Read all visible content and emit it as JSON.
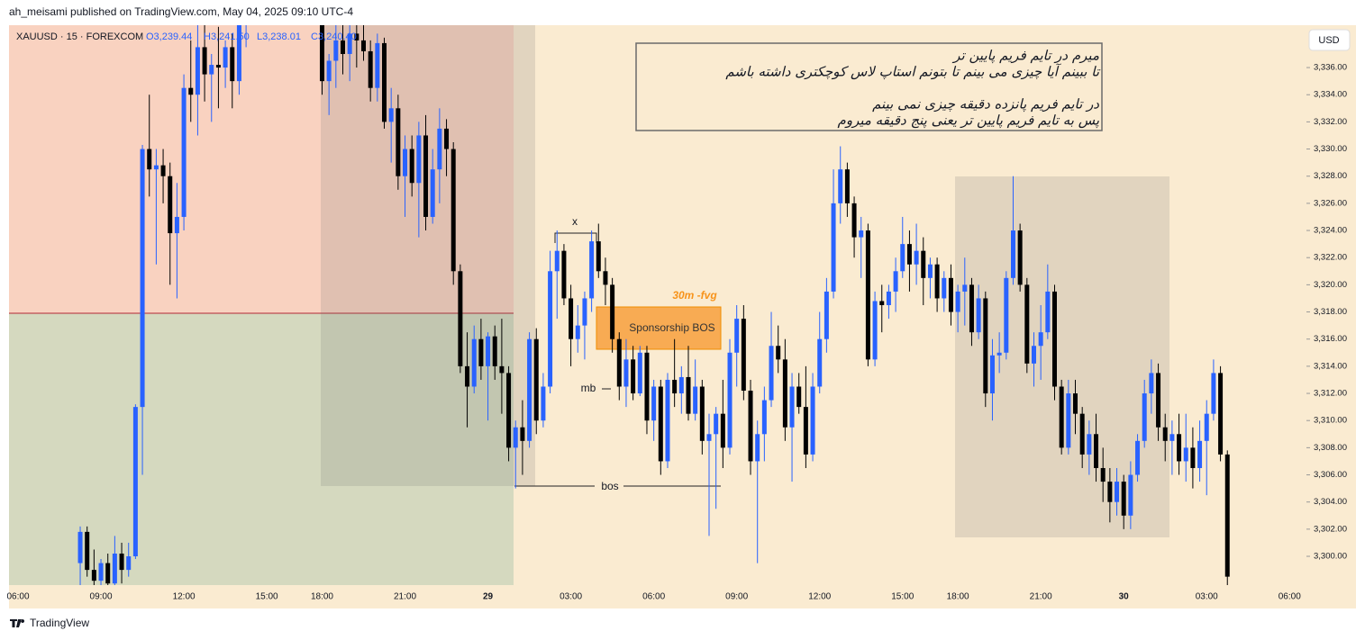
{
  "chart_data": {
    "type": "candlestick",
    "header": "ah_meisami published on TradingView.com, May 04, 2025 09:10 UTC-4",
    "symbol_info": {
      "symbol": "XAUUSD · 15 · FOREXCOM",
      "open": "O3,239.44",
      "high": "H3,241.50",
      "low": "L3,238.01",
      "close": "C3,240.40"
    },
    "currency": "USD",
    "footer": "TradingView",
    "up_color": "#2962ff",
    "down_color": "#000000",
    "ylim": [
      3297.88,
      3339.12
    ],
    "yticks": [
      {
        "value": 3300,
        "label": "3,300.00"
      },
      {
        "value": 3302,
        "label": "3,302.00"
      },
      {
        "value": 3304,
        "label": "3,304.00"
      },
      {
        "value": 3306,
        "label": "3,306.00"
      },
      {
        "value": 3308,
        "label": "3,308.00"
      },
      {
        "value": 3310,
        "label": "3,310.00"
      },
      {
        "value": 3312,
        "label": "3,312.00"
      },
      {
        "value": 3314,
        "label": "3,314.00"
      },
      {
        "value": 3316,
        "label": "3,316.00"
      },
      {
        "value": 3318,
        "label": "3,318.00"
      },
      {
        "value": 3320,
        "label": "3,320.00"
      },
      {
        "value": 3322,
        "label": "3,322.00"
      },
      {
        "value": 3324,
        "label": "3,324.00"
      },
      {
        "value": 3326,
        "label": "3,326.00"
      },
      {
        "value": 3328,
        "label": "3,328.00"
      },
      {
        "value": 3330,
        "label": "3,330.00"
      },
      {
        "value": 3332,
        "label": "3,332.00"
      },
      {
        "value": 3334,
        "label": "3,334.00"
      },
      {
        "value": 3336,
        "label": "3,336.00"
      }
    ],
    "categories": [
      "06:00",
      null,
      null,
      null,
      null,
      null,
      null,
      null,
      null,
      null,
      null,
      null,
      "09:00",
      null,
      null,
      null,
      null,
      null,
      null,
      null,
      null,
      null,
      null,
      null,
      "12:00",
      null,
      null,
      null,
      null,
      null,
      null,
      null,
      null,
      null,
      null,
      null,
      "15:00",
      null,
      null,
      null,
      null,
      null,
      null,
      null,
      "18:00",
      null,
      null,
      null,
      null,
      null,
      null,
      null,
      null,
      null,
      null,
      null,
      "21:00",
      null,
      null,
      null,
      null,
      null,
      null,
      null,
      null,
      null,
      null,
      null,
      "29",
      null,
      null,
      null,
      null,
      null,
      null,
      null,
      null,
      null,
      null,
      null,
      "03:00",
      null,
      null,
      null,
      null,
      null,
      null,
      null,
      null,
      null,
      null,
      null,
      "06:00",
      null,
      null,
      null,
      null,
      null,
      null,
      null,
      null,
      null,
      null,
      null,
      "09:00",
      null,
      null,
      null,
      null,
      null,
      null,
      null,
      null,
      null,
      null,
      null,
      "12:00",
      null,
      null,
      null,
      null,
      null,
      null,
      null,
      null,
      null,
      null,
      null,
      "15:00",
      null,
      null,
      null,
      null,
      null,
      null,
      null,
      "18:00",
      null,
      null,
      null,
      null,
      null,
      null,
      null,
      null,
      null,
      null,
      null,
      "21:00",
      null,
      null,
      null,
      null,
      null,
      null,
      null,
      null,
      null,
      null,
      null,
      "30",
      null,
      null,
      null,
      null,
      null,
      null,
      null,
      null,
      null,
      null,
      null,
      "03:00",
      null,
      null,
      null,
      null,
      null,
      null,
      null,
      null,
      null,
      null,
      null,
      "06:00"
    ],
    "ohlc": [
      null,
      null,
      null,
      null,
      null,
      null,
      null,
      null,
      null,
      [
        3299.5,
        3302.2,
        3297.5,
        3301.8
      ],
      [
        3301.8,
        3302.2,
        3298.5,
        3299.0
      ],
      [
        3299.0,
        3300.5,
        3297.5,
        3298.2
      ],
      [
        3298.2,
        3299.8,
        3297.5,
        3299.5
      ],
      [
        3299.5,
        3300.2,
        3297.5,
        3298.0
      ],
      [
        3298.0,
        3301.5,
        3297.6,
        3300.2
      ],
      [
        3300.2,
        3301.0,
        3298.0,
        3299.0
      ],
      [
        3299.0,
        3301.0,
        3298.5,
        3300.0
      ],
      [
        3300.0,
        3311.2,
        3299.8,
        3311.0
      ],
      [
        3311.0,
        3330.3,
        3306.0,
        3330.0
      ],
      [
        3330.0,
        3334.0,
        3326.5,
        3328.5
      ],
      [
        3328.5,
        3330.0,
        3321.5,
        3328.8
      ],
      [
        3328.8,
        3330.0,
        3326.0,
        3328.0
      ],
      [
        3328.0,
        3329.0,
        3320.0,
        3323.8
      ],
      [
        3323.8,
        3327.5,
        3319.0,
        3325.0
      ],
      [
        3325.0,
        3335.5,
        3324.0,
        3334.5
      ],
      [
        3334.5,
        3338.0,
        3332.0,
        3334.0
      ],
      [
        3334.0,
        3339.5,
        3331.0,
        3337.5
      ],
      [
        3337.5,
        3340.5,
        3333.5,
        3335.5
      ],
      [
        3335.5,
        3337.0,
        3332.0,
        3336.2
      ],
      [
        3336.2,
        3339.0,
        3333.0,
        3336.0
      ],
      [
        3336.0,
        3338.0,
        3334.5,
        3337.5
      ],
      [
        3337.5,
        3338.5,
        3333.0,
        3335.0
      ],
      [
        3335.0,
        3340.5,
        3334.0,
        3339.5
      ],
      [
        3339.5,
        3342.0,
        3337.5,
        3341.0
      ],
      [
        3341.0,
        3344.0,
        3340.0,
        3343.0
      ],
      [
        3343.0,
        3345.5,
        3341.5,
        3344.5
      ],
      [
        3344.5,
        3346.0,
        3342.0,
        3343.0
      ],
      [
        3343.0,
        3345.0,
        3341.0,
        3344.0
      ],
      [
        3344.0,
        3346.5,
        3342.5,
        3345.0
      ],
      [
        3345.0,
        3346.0,
        3341.5,
        3342.5
      ],
      [
        3342.5,
        3344.0,
        3340.5,
        3341.5
      ],
      [
        3341.5,
        3343.5,
        3339.5,
        3342.5
      ],
      [
        3342.5,
        3343.0,
        3339.8,
        3340.5
      ],
      [
        3340.5,
        3342.0,
        3339.2,
        3341.0
      ],
      [
        3341.0,
        3341.5,
        3334.0,
        3335.0
      ],
      [
        3335.0,
        3337.0,
        3332.5,
        3336.5
      ],
      [
        3336.5,
        3339.5,
        3334.5,
        3338.0
      ],
      [
        3338.0,
        3340.0,
        3335.5,
        3337.0
      ],
      [
        3337.0,
        3339.5,
        3335.0,
        3338.5
      ],
      [
        3338.5,
        3339.8,
        3336.0,
        3338.0
      ],
      [
        3338.0,
        3340.0,
        3336.5,
        3337.2
      ],
      [
        3337.2,
        3338.0,
        3333.5,
        3334.5
      ],
      [
        3334.5,
        3338.5,
        3333.5,
        3337.8
      ],
      [
        3337.8,
        3338.2,
        3331.5,
        3332.0
      ],
      [
        3332.0,
        3334.5,
        3329.0,
        3333.0
      ],
      [
        3333.0,
        3334.0,
        3327.0,
        3328.0
      ],
      [
        3328.0,
        3331.0,
        3325.0,
        3330.0
      ],
      [
        3330.0,
        3331.0,
        3326.5,
        3327.5
      ],
      [
        3327.5,
        3332.0,
        3323.5,
        3331.0
      ],
      [
        3331.0,
        3332.5,
        3324.0,
        3325.0
      ],
      [
        3325.0,
        3330.0,
        3324.5,
        3328.5
      ],
      [
        3328.5,
        3333.0,
        3326.0,
        3331.5
      ],
      [
        3331.5,
        3332.2,
        3328.0,
        3330.0
      ],
      [
        3330.0,
        3330.5,
        3320.0,
        3321.0
      ],
      [
        3321.0,
        3321.5,
        3313.5,
        3314.0
      ],
      [
        3314.0,
        3316.5,
        3309.5,
        3312.5
      ],
      [
        3312.5,
        3317.0,
        3312.0,
        3316.0
      ],
      [
        3316.0,
        3317.5,
        3313.0,
        3314.0
      ],
      [
        3314.0,
        3316.5,
        3310.0,
        3316.2
      ],
      [
        3316.2,
        3317.0,
        3313.0,
        3314.0
      ],
      [
        3314.0,
        3317.5,
        3310.5,
        3313.5
      ],
      [
        3313.5,
        3314.0,
        3307.0,
        3308.0
      ],
      [
        3308.0,
        3310.0,
        3305.0,
        3309.5
      ],
      [
        3309.5,
        3311.5,
        3306.0,
        3308.5
      ],
      [
        3308.5,
        3316.5,
        3308.0,
        3316.0
      ],
      [
        3316.0,
        3316.8,
        3309.0,
        3310.0
      ],
      [
        3310.0,
        3313.5,
        3309.5,
        3312.5
      ],
      [
        3312.5,
        3322.5,
        3312.0,
        3321.0
      ],
      [
        3321.0,
        3324.0,
        3317.5,
        3322.5
      ],
      [
        3322.5,
        3323.0,
        3318.5,
        3319.0
      ],
      [
        3319.0,
        3320.0,
        3314.0,
        3316.0
      ],
      [
        3316.0,
        3318.5,
        3315.0,
        3317.0
      ],
      [
        3317.0,
        3319.5,
        3314.5,
        3319.0
      ],
      [
        3319.0,
        3324.0,
        3318.0,
        3323.2
      ],
      [
        3323.2,
        3324.5,
        3320.5,
        3321.0
      ],
      [
        3321.0,
        3322.0,
        3318.5,
        3320.0
      ],
      [
        3320.0,
        3320.5,
        3315.0,
        3316.0
      ],
      [
        3316.0,
        3316.5,
        3311.5,
        3312.5
      ],
      [
        3312.5,
        3316.0,
        3311.0,
        3314.5
      ],
      [
        3314.5,
        3315.5,
        3311.5,
        3312.0
      ],
      [
        3312.0,
        3315.5,
        3311.8,
        3315.0
      ],
      [
        3315.0,
        3315.5,
        3309.0,
        3310.0
      ],
      [
        3310.0,
        3313.0,
        3308.5,
        3312.5
      ],
      [
        3312.5,
        3313.0,
        3306.0,
        3307.0
      ],
      [
        3307.0,
        3313.5,
        3306.5,
        3313.0
      ],
      [
        3313.0,
        3316.0,
        3311.0,
        3312.0
      ],
      [
        3312.0,
        3314.0,
        3310.5,
        3313.2
      ],
      [
        3313.2,
        3315.5,
        3310.0,
        3310.5
      ],
      [
        3310.5,
        3314.5,
        3310.0,
        3312.5
      ],
      [
        3312.5,
        3313.0,
        3307.5,
        3308.5
      ],
      [
        3308.5,
        3310.5,
        3301.5,
        3309.0
      ],
      [
        3309.0,
        3311.0,
        3303.5,
        3310.5
      ],
      [
        3310.5,
        3313.0,
        3306.5,
        3308.0
      ],
      [
        3308.0,
        3316.0,
        3307.5,
        3315.0
      ],
      [
        3315.0,
        3318.5,
        3312.5,
        3317.5
      ],
      [
        3317.5,
        3318.5,
        3311.5,
        3312.2
      ],
      [
        3312.2,
        3313.0,
        3306.0,
        3307.0
      ],
      [
        3307.0,
        3310.0,
        3299.5,
        3309.0
      ],
      [
        3309.0,
        3312.5,
        3307.0,
        3311.5
      ],
      [
        3311.5,
        3318.0,
        3311.0,
        3315.5
      ],
      [
        3315.5,
        3317.0,
        3313.5,
        3314.5
      ],
      [
        3314.5,
        3316.0,
        3308.5,
        3309.5
      ],
      [
        3309.5,
        3313.5,
        3305.5,
        3312.5
      ],
      [
        3312.5,
        3313.5,
        3310.5,
        3311.0
      ],
      [
        3311.0,
        3314.0,
        3306.5,
        3307.5
      ],
      [
        3307.5,
        3313.5,
        3307.0,
        3312.5
      ],
      [
        3312.5,
        3318.0,
        3312.0,
        3316.0
      ],
      [
        3316.0,
        3320.5,
        3315.0,
        3319.5
      ],
      [
        3319.5,
        3328.5,
        3319.0,
        3326.0
      ],
      [
        3326.0,
        3330.2,
        3324.5,
        3328.5
      ],
      [
        3328.5,
        3329.0,
        3325.0,
        3326.0
      ],
      [
        3326.0,
        3326.5,
        3322.0,
        3323.5
      ],
      [
        3323.5,
        3325.0,
        3320.5,
        3324.0
      ],
      [
        3324.0,
        3324.5,
        3314.0,
        3314.5
      ],
      [
        3314.5,
        3319.5,
        3314.0,
        3318.8
      ],
      [
        3318.8,
        3320.0,
        3316.5,
        3318.5
      ],
      [
        3318.5,
        3320.0,
        3317.5,
        3319.5
      ],
      [
        3319.5,
        3322.0,
        3318.0,
        3321.0
      ],
      [
        3321.0,
        3325.0,
        3320.5,
        3323.0
      ],
      [
        3323.0,
        3324.0,
        3319.5,
        3321.5
      ],
      [
        3321.5,
        3324.5,
        3320.0,
        3322.5
      ],
      [
        3322.5,
        3323.5,
        3318.5,
        3320.5
      ],
      [
        3320.5,
        3322.0,
        3319.0,
        3321.5
      ],
      [
        3321.5,
        3322.0,
        3318.0,
        3319.0
      ],
      [
        3319.0,
        3321.0,
        3318.0,
        3320.5
      ],
      [
        3320.5,
        3321.5,
        3317.0,
        3318.0
      ],
      [
        3318.0,
        3320.0,
        3316.5,
        3319.5
      ],
      [
        3319.5,
        3322.0,
        3317.0,
        3320.0
      ],
      [
        3320.0,
        3320.5,
        3315.5,
        3316.5
      ],
      [
        3316.5,
        3320.0,
        3316.0,
        3319.0
      ],
      [
        3319.0,
        3319.5,
        3311.0,
        3312.0
      ],
      [
        3312.0,
        3316.0,
        3310.0,
        3314.8
      ],
      [
        3314.8,
        3316.5,
        3313.5,
        3315.0
      ],
      [
        3315.0,
        3321.0,
        3314.5,
        3320.5
      ],
      [
        3320.5,
        3328.0,
        3320.0,
        3324.0
      ],
      [
        3324.0,
        3324.5,
        3319.5,
        3320.0
      ],
      [
        3320.0,
        3320.5,
        3313.5,
        3314.2
      ],
      [
        3314.2,
        3316.5,
        3312.5,
        3315.5
      ],
      [
        3315.5,
        3318.5,
        3313.0,
        3316.5
      ],
      [
        3316.5,
        3321.5,
        3316.0,
        3319.5
      ],
      [
        3319.5,
        3320.0,
        3311.5,
        3312.5
      ],
      [
        3312.5,
        3313.0,
        3307.5,
        3308.0
      ],
      [
        3308.0,
        3313.0,
        3307.5,
        3312.0
      ],
      [
        3312.0,
        3313.0,
        3309.0,
        3310.5
      ],
      [
        3310.5,
        3311.0,
        3306.5,
        3307.5
      ],
      [
        3307.5,
        3310.0,
        3306.0,
        3309.0
      ],
      [
        3309.0,
        3310.5,
        3305.5,
        3306.5
      ],
      [
        3306.5,
        3308.0,
        3304.0,
        3305.5
      ],
      [
        3305.5,
        3306.5,
        3302.5,
        3304.0
      ],
      [
        3304.0,
        3306.5,
        3303.0,
        3305.5
      ],
      [
        3305.5,
        3306.0,
        3302.0,
        3303.0
      ],
      [
        3303.0,
        3307.0,
        3302.0,
        3306.0
      ],
      [
        3306.0,
        3309.0,
        3305.5,
        3308.5
      ],
      [
        3308.5,
        3313.0,
        3308.0,
        3312.0
      ],
      [
        3312.0,
        3314.5,
        3310.5,
        3313.5
      ],
      [
        3313.5,
        3314.2,
        3308.5,
        3309.5
      ],
      [
        3309.5,
        3310.5,
        3307.0,
        3308.5
      ],
      [
        3308.5,
        3310.0,
        3306.0,
        3309.0
      ],
      [
        3309.0,
        3310.5,
        3306.0,
        3307.0
      ],
      [
        3307.0,
        3310.5,
        3305.5,
        3308.0
      ],
      [
        3308.0,
        3309.5,
        3305.0,
        3306.5
      ],
      [
        3306.5,
        3310.0,
        3305.5,
        3308.5
      ],
      [
        3308.5,
        3311.5,
        3304.5,
        3310.5
      ],
      [
        3310.5,
        3314.5,
        3310.0,
        3313.5
      ],
      [
        3313.5,
        3314.0,
        3307.0,
        3307.5
      ],
      [
        3307.5,
        3307.8,
        3296.0,
        3298.5
      ],
      null,
      null,
      null,
      null,
      null,
      null,
      null,
      null,
      null
    ],
    "annotations": [
      "x",
      "mb",
      "bos",
      "30m -fvg",
      "Sponsorship BOS",
      "میرم در تایم فریم پایین تر",
      "تا ببینم آیا چیزی می بینم تا بتونم استاپ لاس کوچکتری داشته باشم",
      "در تایم فریم پانزده دقیقه چیزی نمی بینم",
      "پس به تایم فریم پایین تر یعنی پنج دقیقه میروم"
    ]
  }
}
